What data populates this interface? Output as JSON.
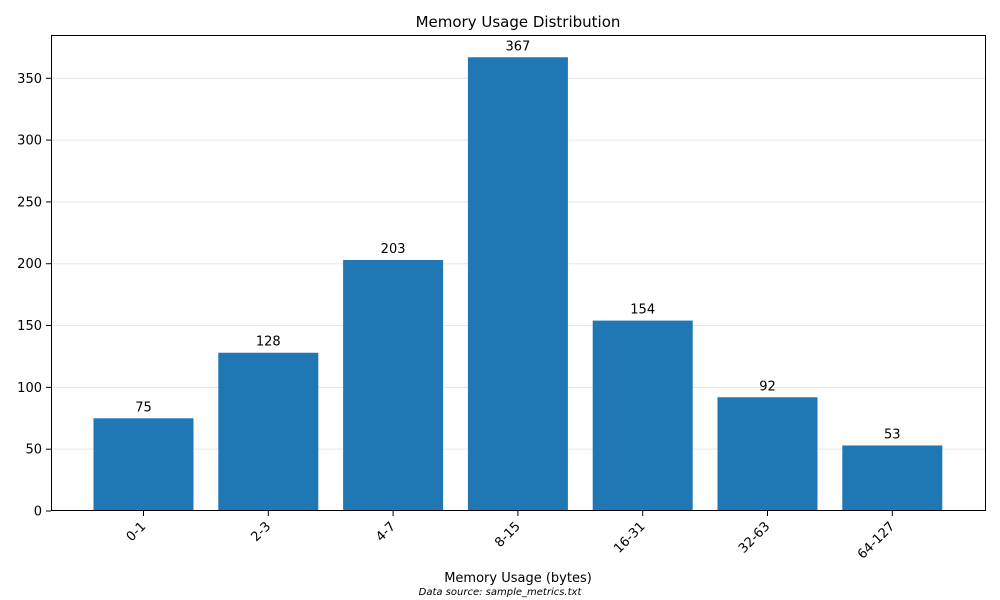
{
  "chart_data": {
    "type": "bar",
    "title": "Memory Usage Distribution",
    "xlabel": "Memory Usage (bytes)",
    "ylabel": "",
    "categories": [
      "0-1",
      "2-3",
      "4-7",
      "8-15",
      "16-31",
      "32-63",
      "64-127"
    ],
    "values": [
      75,
      128,
      203,
      367,
      154,
      92,
      53
    ],
    "data_labels": [
      "75",
      "128",
      "203",
      "367",
      "154",
      "92",
      "53"
    ],
    "yticks": [
      0,
      50,
      100,
      150,
      200,
      250,
      300,
      350
    ],
    "ylim": [
      0,
      385
    ],
    "grid": "y",
    "legend": "none",
    "bar_color": "#1f77b4",
    "note": "Data source: sample_metrics.txt"
  }
}
